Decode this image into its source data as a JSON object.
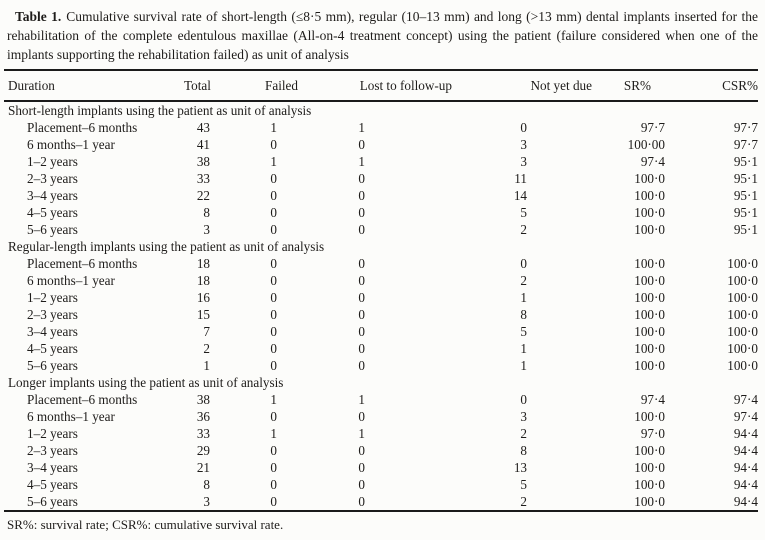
{
  "caption": {
    "label": "Table 1.",
    "text": "Cumulative survival rate of short-length (≤8·5 mm), regular (10–13 mm) and long (>13 mm) dental implants inserted for the rehabilitation of the complete edentulous maxillae (All-on-4 treatment concept) using the patient (failure considered when one of the implants supporting the rehabilitation failed) as unit of analysis"
  },
  "table": {
    "columns": [
      "Duration",
      "Total",
      "Failed",
      "Lost to follow-up",
      "Not yet due",
      "SR%",
      "CSR%"
    ],
    "column_keys": [
      "duration",
      "total",
      "failed",
      "lost-to-follow-up",
      "not-yet-due",
      "sr-percent",
      "csr-percent"
    ],
    "sections": [
      {
        "header": "Short-length implants using the patient as unit of analysis",
        "rows": [
          [
            "Placement–6 months",
            "43",
            "1",
            "1",
            "0",
            "97·7",
            "97·7"
          ],
          [
            "6 months–1 year",
            "41",
            "0",
            "0",
            "3",
            "100·00",
            "97·7"
          ],
          [
            "1–2 years",
            "38",
            "1",
            "1",
            "3",
            "97·4",
            "95·1"
          ],
          [
            "2–3 years",
            "33",
            "0",
            "0",
            "11",
            "100·0",
            "95·1"
          ],
          [
            "3–4 years",
            "22",
            "0",
            "0",
            "14",
            "100·0",
            "95·1"
          ],
          [
            "4–5 years",
            "8",
            "0",
            "0",
            "5",
            "100·0",
            "95·1"
          ],
          [
            "5–6 years",
            "3",
            "0",
            "0",
            "2",
            "100·0",
            "95·1"
          ]
        ]
      },
      {
        "header": "Regular-length implants using the patient as unit of analysis",
        "rows": [
          [
            "Placement–6 months",
            "18",
            "0",
            "0",
            "0",
            "100·0",
            "100·0"
          ],
          [
            "6 months–1 year",
            "18",
            "0",
            "0",
            "2",
            "100·0",
            "100·0"
          ],
          [
            "1–2 years",
            "16",
            "0",
            "0",
            "1",
            "100·0",
            "100·0"
          ],
          [
            "2–3 years",
            "15",
            "0",
            "0",
            "8",
            "100·0",
            "100·0"
          ],
          [
            "3–4 years",
            "7",
            "0",
            "0",
            "5",
            "100·0",
            "100·0"
          ],
          [
            "4–5 years",
            "2",
            "0",
            "0",
            "1",
            "100·0",
            "100·0"
          ],
          [
            "5–6 years",
            "1",
            "0",
            "0",
            "1",
            "100·0",
            "100·0"
          ]
        ]
      },
      {
        "header": "Longer implants using the patient as unit of analysis",
        "rows": [
          [
            "Placement–6 months",
            "38",
            "1",
            "1",
            "0",
            "97·4",
            "97·4"
          ],
          [
            "6 months–1 year",
            "36",
            "0",
            "0",
            "3",
            "100·0",
            "97·4"
          ],
          [
            "1–2 years",
            "33",
            "1",
            "1",
            "2",
            "97·0",
            "94·4"
          ],
          [
            "2–3 years",
            "29",
            "0",
            "0",
            "8",
            "100·0",
            "94·4"
          ],
          [
            "3–4 years",
            "21",
            "0",
            "0",
            "13",
            "100·0",
            "94·4"
          ],
          [
            "4–5 years",
            "8",
            "0",
            "0",
            "5",
            "100·0",
            "94·4"
          ],
          [
            "5–6 years",
            "3",
            "0",
            "0",
            "2",
            "100·0",
            "94·4"
          ]
        ]
      }
    ]
  },
  "footnote": "SR%: survival rate; CSR%: cumulative survival rate.",
  "colors": {
    "background": "#fcfcfa",
    "text": "#1e1c1a",
    "rule": "#1b1b1b"
  }
}
